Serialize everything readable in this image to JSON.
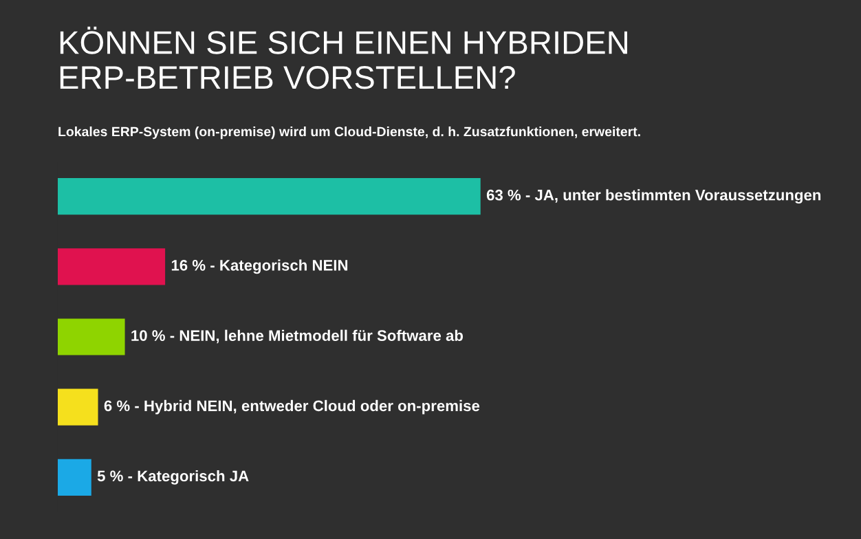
{
  "chart_data": {
    "type": "bar",
    "orientation": "horizontal",
    "title": "KÖNNEN SIE SICH EINEN HYBRIDEN\nERP-BETRIEB VORSTELLEN?",
    "subtitle": "Lokales ERP-System (on-premise) wird um Cloud-Dienste, d. h. Zusatzfunktionen, erweitert.",
    "categories": [
      null,
      null,
      null,
      null,
      null
    ],
    "values": [
      63,
      16,
      10,
      6,
      5
    ],
    "value_labels": [
      "63 % - JA, unter bestimmten Voraussetzungen",
      "16 % - Kategorisch NEIN",
      "10 % - NEIN, lehne Mietmodell für Software ab",
      "6 % - Hybrid NEIN, entweder Cloud oder on-premise",
      "5 % - Kategorisch JA"
    ],
    "colors": [
      "#1dbfa5",
      "#e0124f",
      "#8fd400",
      "#f5e01d",
      "#1ba9e6"
    ]
  }
}
